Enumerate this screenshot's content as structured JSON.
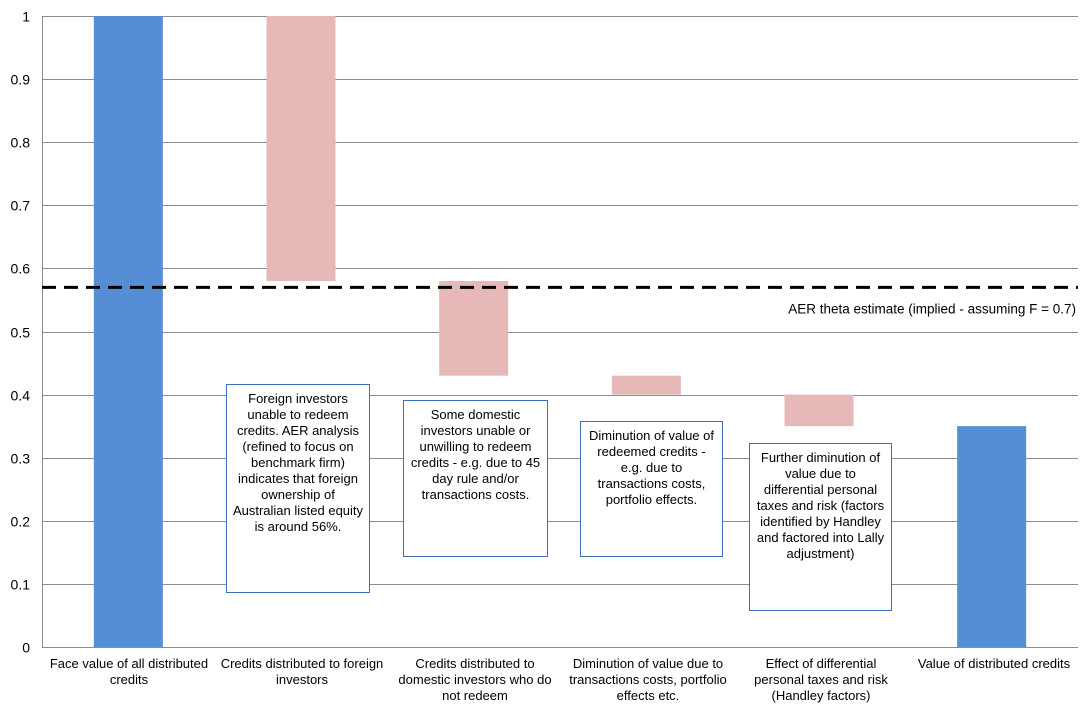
{
  "chart_data": {
    "type": "bar",
    "subtype": "waterfall",
    "categories": [
      "Face value of all distributed credits",
      "Credits distributed to foreign investors",
      "Credits distributed to domestic investors who do not redeem",
      "Diminution of value due to transactions costs, portfolio effects etc.",
      "Effect of differential personal taxes and risk (Handley factors)",
      "Value of distributed credits"
    ],
    "bars": [
      {
        "category_index": 0,
        "kind": "total",
        "bottom": 0,
        "top": 1.0,
        "color": "#558ed5"
      },
      {
        "category_index": 1,
        "kind": "decrease",
        "bottom": 0.58,
        "top": 1.0,
        "color": "#e6b9b8"
      },
      {
        "category_index": 2,
        "kind": "decrease",
        "bottom": 0.43,
        "top": 0.58,
        "color": "#e6b9b8"
      },
      {
        "category_index": 3,
        "kind": "decrease",
        "bottom": 0.4,
        "top": 0.43,
        "color": "#e6b9b8"
      },
      {
        "category_index": 4,
        "kind": "decrease",
        "bottom": 0.35,
        "top": 0.4,
        "color": "#e6b9b8"
      },
      {
        "category_index": 5,
        "kind": "total",
        "bottom": 0,
        "top": 0.35,
        "color": "#558ed5"
      }
    ],
    "yticks": [
      "0",
      "0.1",
      "0.2",
      "0.3",
      "0.4",
      "0.5",
      "0.6",
      "0.7",
      "0.8",
      "0.9",
      "1"
    ],
    "ylim": [
      0,
      1
    ],
    "grid": true,
    "reference_line": {
      "value": 0.57,
      "style": "dashed",
      "label": "AER theta estimate (implied - assuming F = 0.7)"
    }
  },
  "annotations": {
    "foreign": "Foreign investors unable to redeem credits. AER analysis (refined to focus on benchmark firm) indicates that foreign ownership of Australian listed equity is around 56%.",
    "domestic": "Some domestic investors unable or unwilling to redeem credits - e.g. due to 45 day rule and/or transactions costs.",
    "diminution": "Diminution of value of redeemed credits - e.g. due to transactions costs, portfolio effects.",
    "further": "Further diminution of value due to differential personal taxes and risk (factors identified by Handley and factored into Lally adjustment)"
  }
}
